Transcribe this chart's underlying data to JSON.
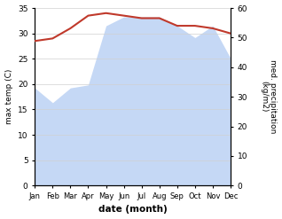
{
  "months": [
    "Jan",
    "Feb",
    "Mar",
    "Apr",
    "May",
    "Jun",
    "Jul",
    "Aug",
    "Sep",
    "Oct",
    "Nov",
    "Dec"
  ],
  "temp": [
    28.5,
    29.0,
    31.0,
    33.5,
    34.0,
    33.5,
    33.0,
    33.0,
    31.5,
    31.5,
    31.0,
    30.0
  ],
  "precip": [
    33,
    28,
    33,
    34,
    54,
    57,
    57,
    57,
    54,
    50,
    54,
    43
  ],
  "temp_color": "#c0392b",
  "precip_fill_color": "#c5d8f5",
  "ylim_temp": [
    0,
    35
  ],
  "ylim_precip": [
    0,
    60
  ],
  "ylabel_left": "max temp (C)",
  "ylabel_right": "med. precipitation\n(kg/m2)",
  "xlabel": "date (month)",
  "temp_yticks": [
    0,
    5,
    10,
    15,
    20,
    25,
    30,
    35
  ],
  "precip_yticks": [
    0,
    10,
    20,
    30,
    40,
    50,
    60
  ],
  "grid_color": "#d0d0d0"
}
